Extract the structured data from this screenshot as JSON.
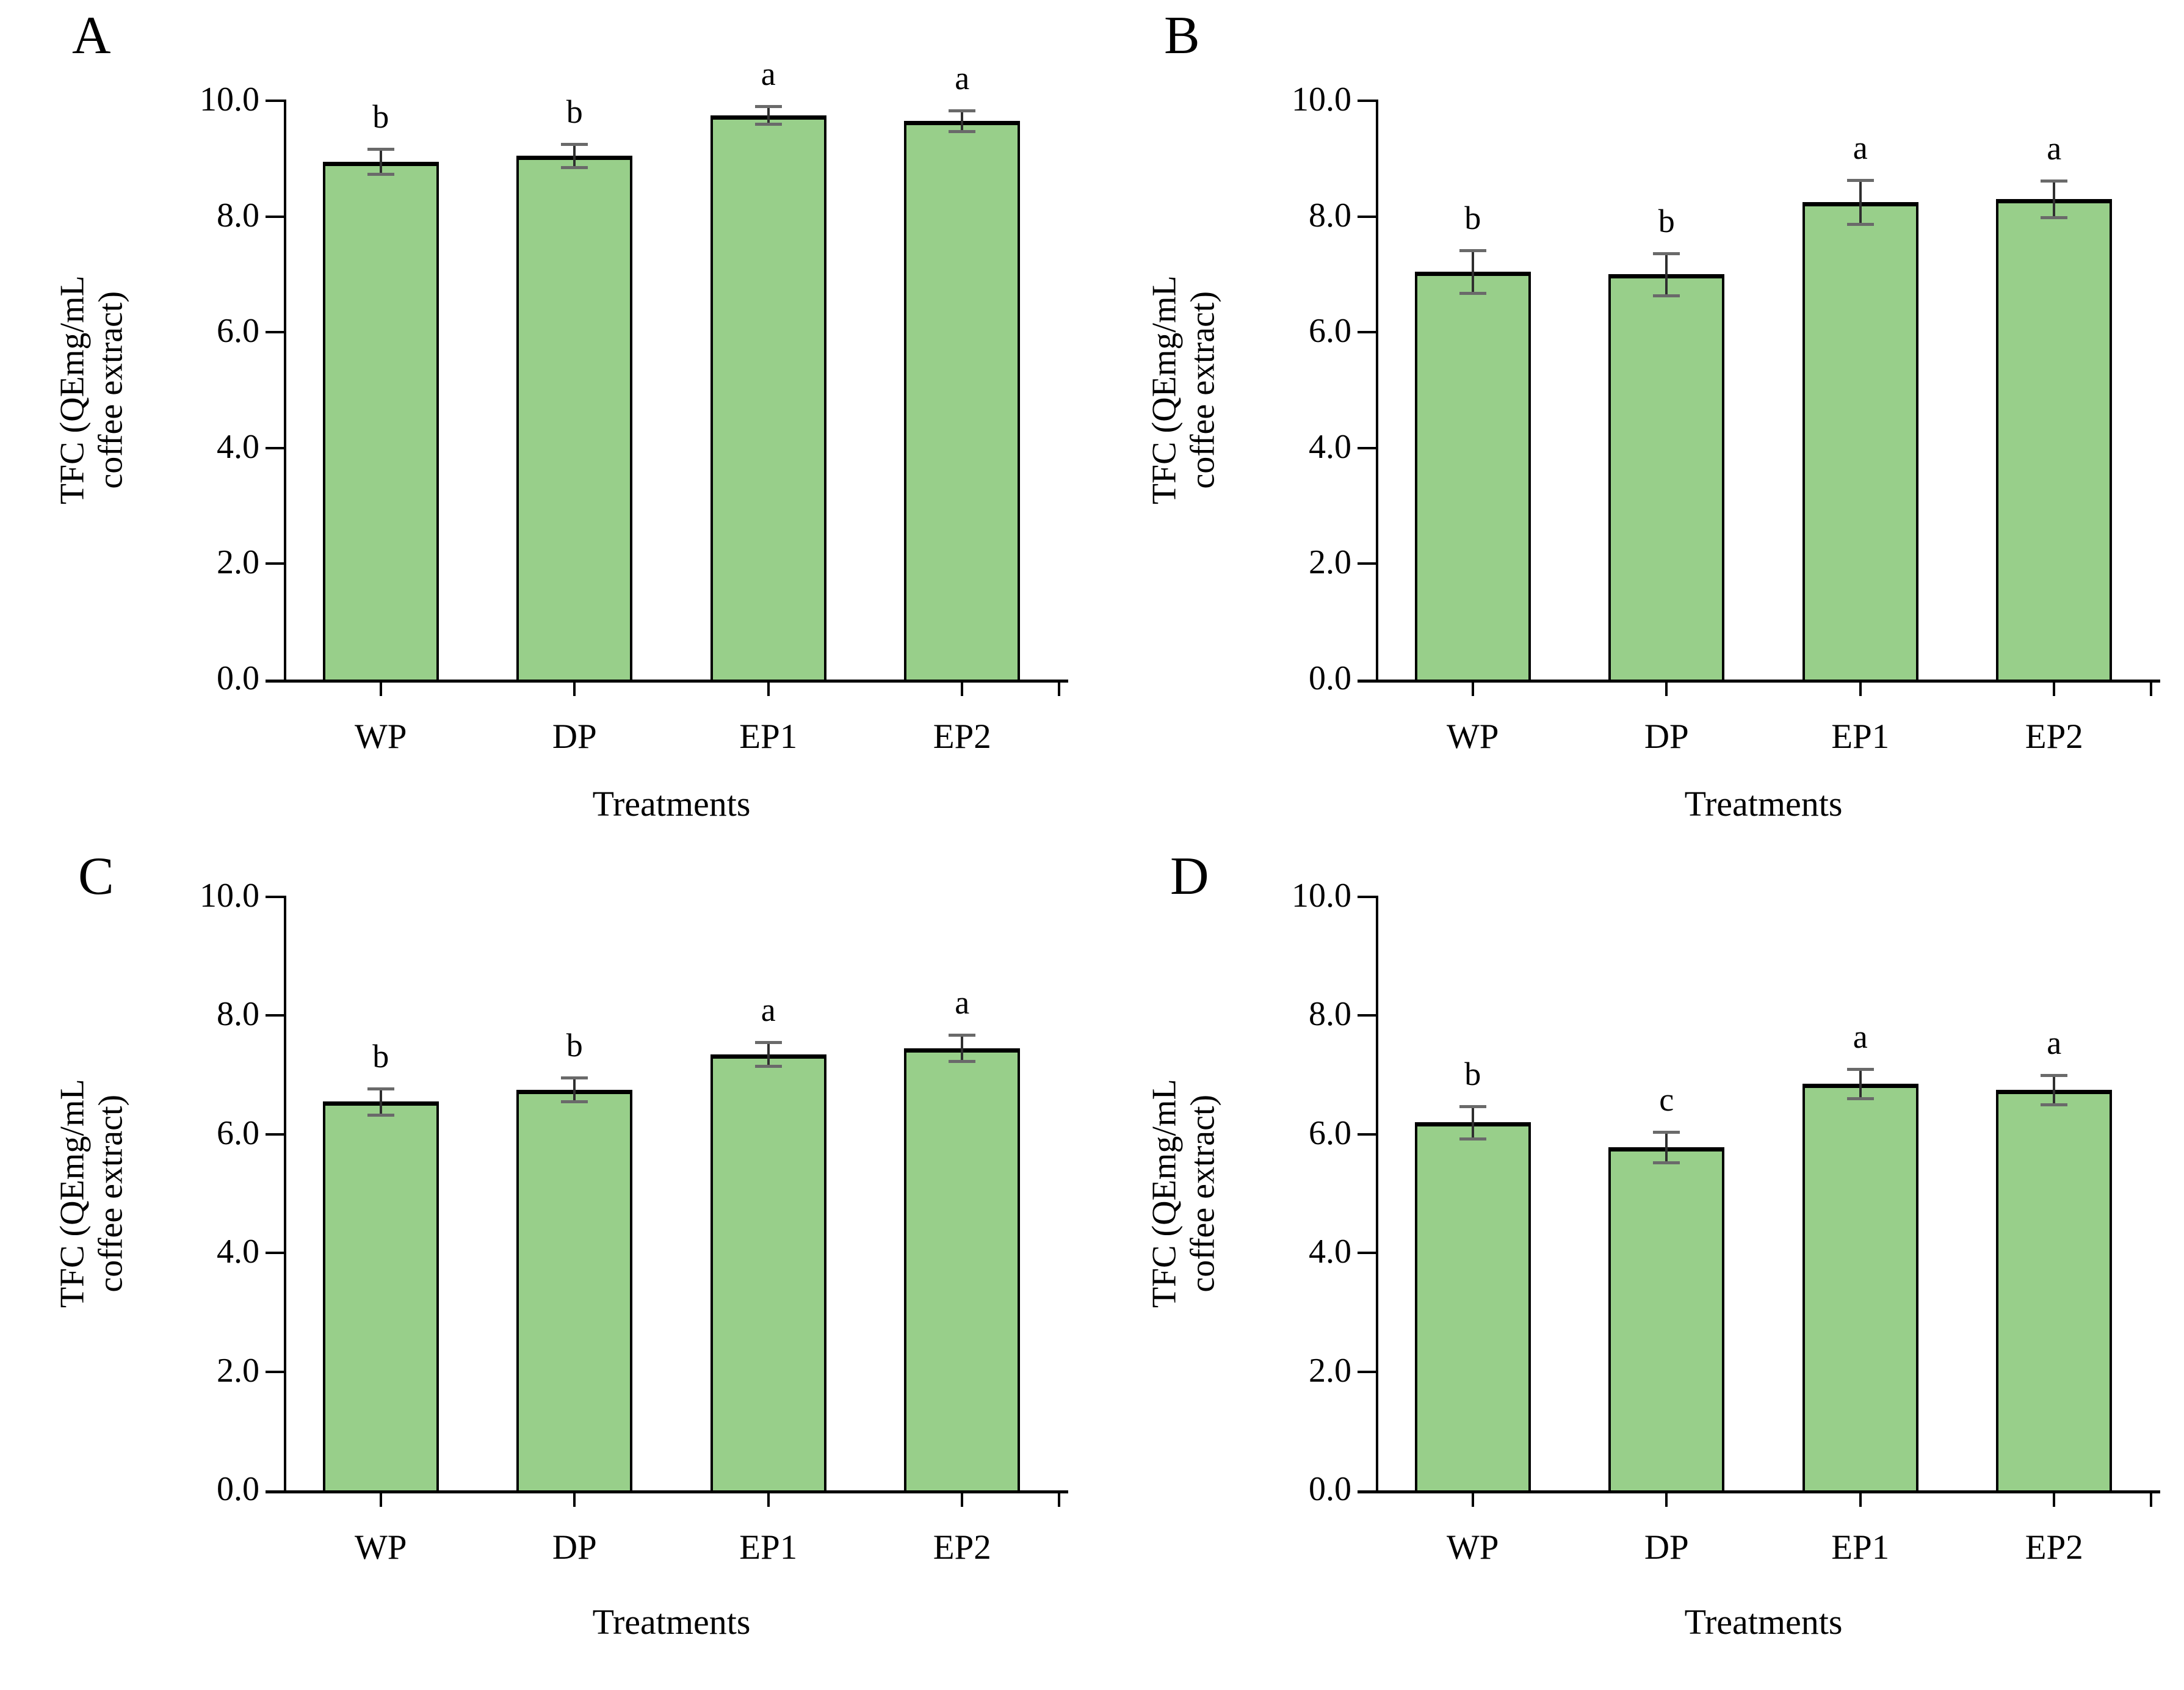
{
  "styles": {
    "bar_fill": "#98CF8A",
    "bar_edge": "#000000",
    "error_line": "#2f2f2f",
    "error_cap": "#6a6a6a",
    "axis_color": "#000000",
    "text_color": "#000000"
  },
  "axis_shared": {
    "xlabel": "Treatments",
    "ylabel_line1": "TFC (QEmg/mL",
    "ylabel_line2": "coffee extract)",
    "categories": [
      "WP",
      "DP",
      "EP1",
      "EP2"
    ],
    "yticks": [
      "0.0",
      "2.0",
      "4.0",
      "6.0",
      "8.0",
      "10.0"
    ],
    "ylim": [
      0,
      10
    ]
  },
  "chart_data": [
    {
      "type": "bar",
      "panel_letter": "A",
      "categories": [
        "WP",
        "DP",
        "EP1",
        "EP2"
      ],
      "values": [
        8.95,
        9.05,
        9.75,
        9.65
      ],
      "errors": [
        0.22,
        0.2,
        0.15,
        0.18
      ],
      "sig_letters": [
        "b",
        "b",
        "a",
        "a"
      ],
      "xlabel": "Treatments",
      "ylabel": "TFC (QEmg/mL coffee extract)",
      "ylim": [
        0,
        10
      ],
      "ytick_step": 2.0,
      "grid": false,
      "legend": "none"
    },
    {
      "type": "bar",
      "panel_letter": "B",
      "categories": [
        "WP",
        "DP",
        "EP1",
        "EP2"
      ],
      "values": [
        7.05,
        7.0,
        8.25,
        8.3
      ],
      "errors": [
        0.37,
        0.36,
        0.38,
        0.32
      ],
      "sig_letters": [
        "b",
        "b",
        "a",
        "a"
      ],
      "xlabel": "Treatments",
      "ylabel": "TFC (QEmg/mL coffee extract)",
      "ylim": [
        0,
        10
      ],
      "ytick_step": 2.0,
      "grid": false,
      "legend": "none"
    },
    {
      "type": "bar",
      "panel_letter": "C",
      "categories": [
        "WP",
        "DP",
        "EP1",
        "EP2"
      ],
      "values": [
        6.55,
        6.75,
        7.35,
        7.45
      ],
      "errors": [
        0.22,
        0.2,
        0.2,
        0.22
      ],
      "sig_letters": [
        "b",
        "b",
        "a",
        "a"
      ],
      "xlabel": "Treatments",
      "ylabel": "TFC (QEmg/mL coffee extract)",
      "ylim": [
        0,
        10
      ],
      "ytick_step": 2.0,
      "grid": false,
      "legend": "none"
    },
    {
      "type": "bar",
      "panel_letter": "D",
      "categories": [
        "WP",
        "DP",
        "EP1",
        "EP2"
      ],
      "values": [
        6.2,
        5.78,
        6.85,
        6.75
      ],
      "errors": [
        0.27,
        0.26,
        0.25,
        0.25
      ],
      "sig_letters": [
        "b",
        "c",
        "a",
        "a"
      ],
      "xlabel": "Treatments",
      "ylabel": "TFC (QEmg/mL coffee extract)",
      "ylim": [
        0,
        10
      ],
      "ytick_step": 2.0,
      "grid": false,
      "legend": "none"
    }
  ]
}
